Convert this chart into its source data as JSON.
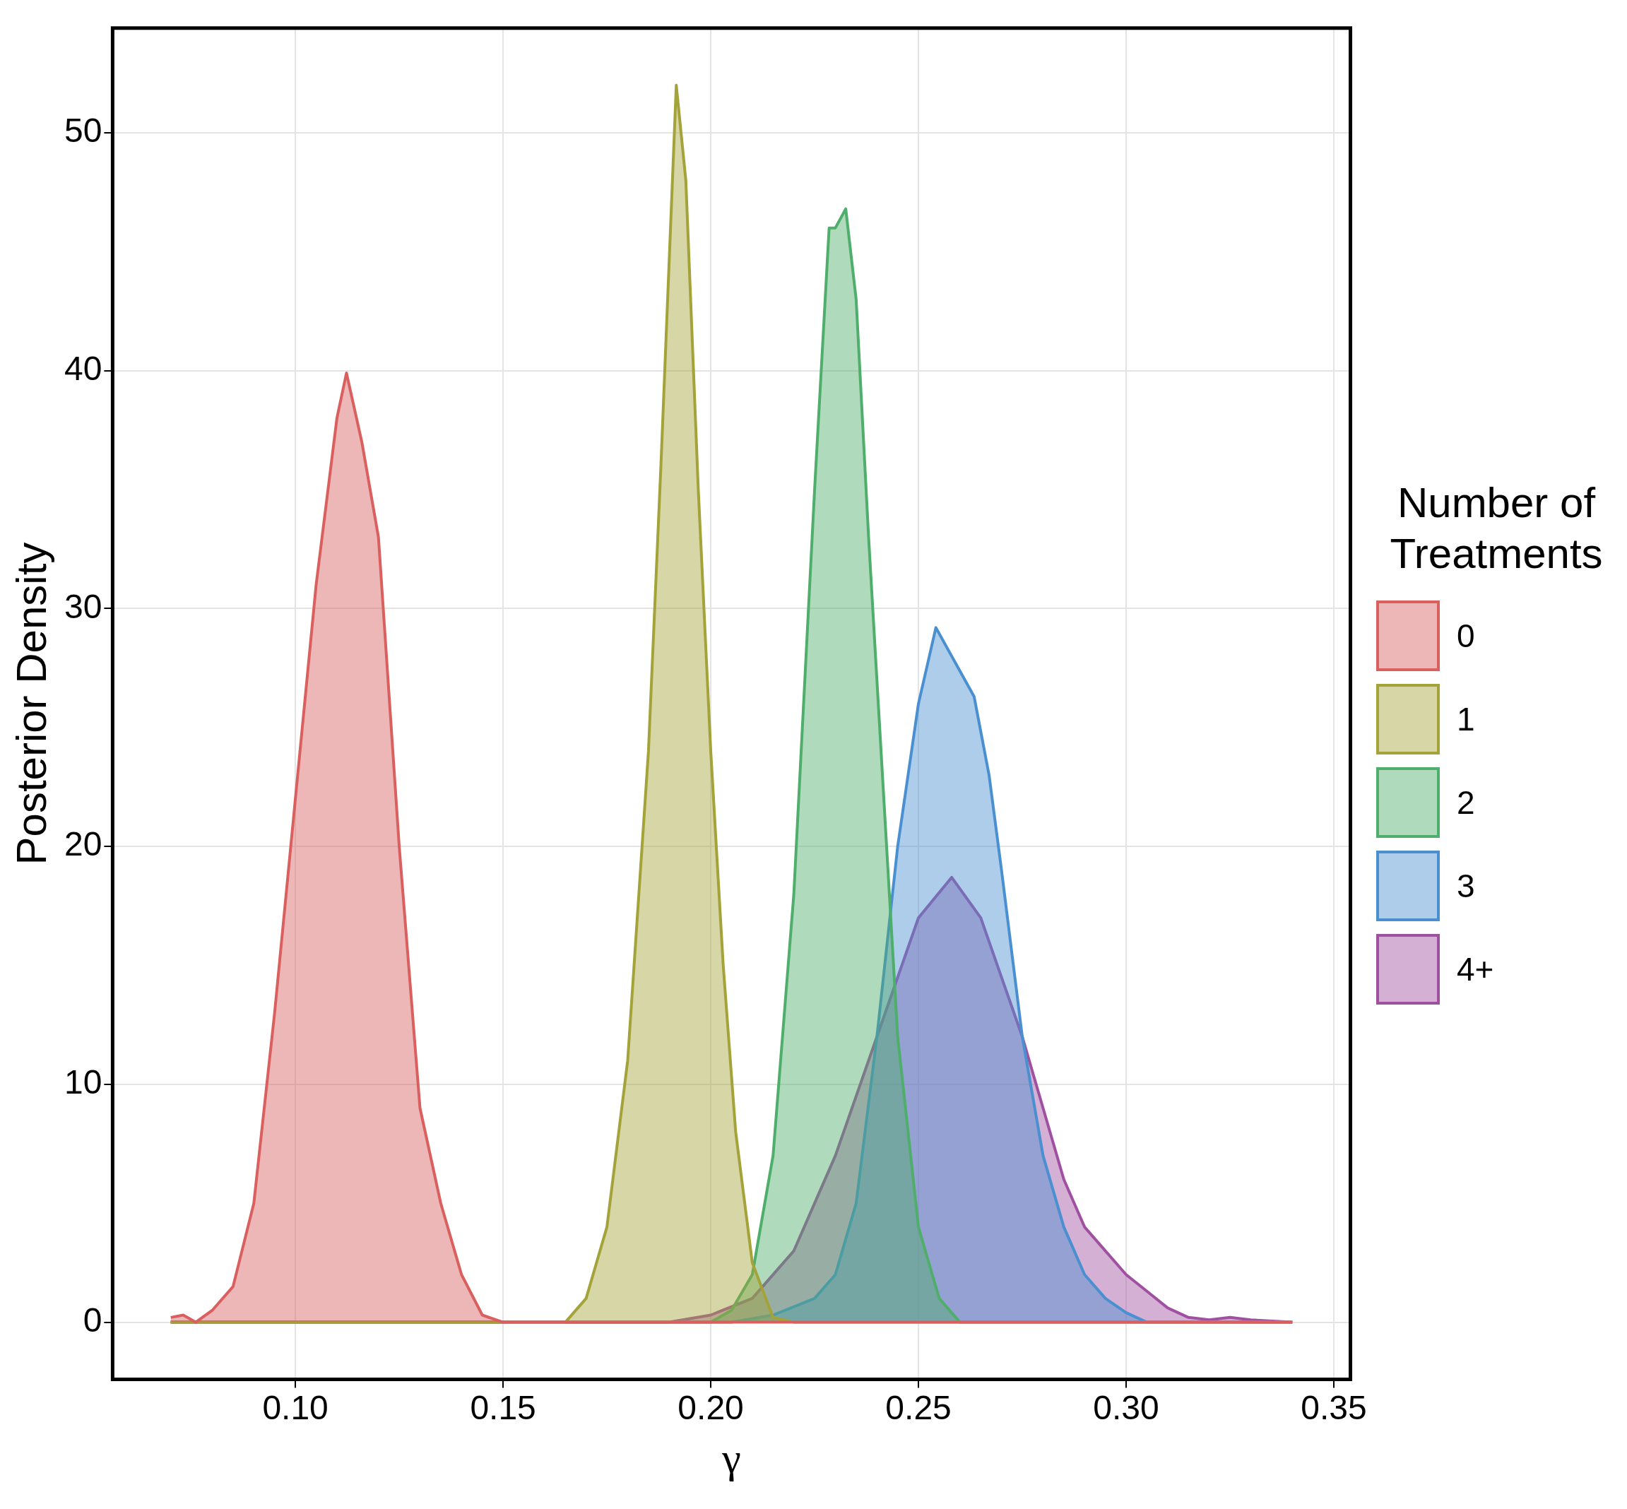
{
  "chart_data": {
    "type": "area",
    "xlabel": "γ",
    "ylabel": "Posterior Density",
    "legend_title": "Number of Treatments",
    "legend": "right",
    "grid": true,
    "marker": "none",
    "xlim": [
      0.056,
      0.354
    ],
    "ylim": [
      -2.4,
      54.4
    ],
    "xticks": [
      {
        "value": 0.1,
        "label": "0.10"
      },
      {
        "value": 0.15,
        "label": "0.15"
      },
      {
        "value": 0.2,
        "label": "0.20"
      },
      {
        "value": 0.25,
        "label": "0.25"
      },
      {
        "value": 0.3,
        "label": "0.30"
      },
      {
        "value": 0.35,
        "label": "0.35"
      }
    ],
    "yticks": [
      0,
      10,
      20,
      30,
      40,
      50
    ],
    "series": [
      {
        "name": "0",
        "color": "#d9605f",
        "x": [
          0.07,
          0.073,
          0.076,
          0.08,
          0.085,
          0.09,
          0.095,
          0.1,
          0.105,
          0.11,
          0.1123,
          0.116,
          0.12,
          0.125,
          0.13,
          0.135,
          0.14,
          0.145,
          0.15,
          0.34
        ],
        "values": [
          0.2,
          0.3,
          0,
          0.5,
          1.5,
          5,
          13,
          22,
          31,
          38,
          39.9,
          37,
          33,
          20,
          9,
          5,
          2,
          0.3,
          0,
          0
        ]
      },
      {
        "name": "1",
        "color": "#a3a33a",
        "x": [
          0.07,
          0.165,
          0.17,
          0.175,
          0.18,
          0.185,
          0.188,
          0.1917,
          0.194,
          0.197,
          0.2,
          0.203,
          0.206,
          0.21,
          0.215,
          0.22,
          0.34
        ],
        "values": [
          0,
          0,
          1,
          4,
          11,
          24,
          36,
          52,
          48,
          35,
          24,
          15,
          8,
          2.5,
          0.2,
          0,
          0
        ]
      },
      {
        "name": "2",
        "color": "#4fae6b",
        "x": [
          0.07,
          0.2,
          0.205,
          0.21,
          0.215,
          0.22,
          0.225,
          0.2285,
          0.23,
          0.2325,
          0.235,
          0.238,
          0.241,
          0.245,
          0.25,
          0.255,
          0.26,
          0.34
        ],
        "values": [
          0,
          0,
          0.5,
          2,
          7,
          18,
          35,
          46,
          46,
          46.8,
          43,
          33,
          24,
          12,
          4,
          1,
          0,
          0
        ]
      },
      {
        "name": "3",
        "color": "#4a90d0",
        "x": [
          0.07,
          0.205,
          0.215,
          0.225,
          0.23,
          0.235,
          0.24,
          0.245,
          0.25,
          0.2542,
          0.258,
          0.2634,
          0.267,
          0.27,
          0.275,
          0.28,
          0.285,
          0.29,
          0.295,
          0.3,
          0.305,
          0.34
        ],
        "values": [
          0,
          0,
          0.3,
          1,
          2,
          5,
          12,
          20,
          26,
          29.2,
          28,
          26.3,
          23,
          19,
          12,
          7,
          4,
          2,
          1,
          0.4,
          0,
          0
        ]
      },
      {
        "name": "4+",
        "color": "#a050a0",
        "x": [
          0.07,
          0.19,
          0.2,
          0.21,
          0.22,
          0.23,
          0.24,
          0.25,
          0.258,
          0.265,
          0.27,
          0.275,
          0.28,
          0.285,
          0.29,
          0.295,
          0.3,
          0.305,
          0.31,
          0.315,
          0.32,
          0.325,
          0.33,
          0.34
        ],
        "values": [
          0,
          0,
          0.3,
          1,
          3,
          7,
          12,
          17,
          18.7,
          17,
          14.5,
          12,
          9,
          6,
          4,
          3,
          2,
          1.3,
          0.6,
          0.2,
          0.1,
          0.2,
          0.1,
          0
        ]
      }
    ]
  }
}
